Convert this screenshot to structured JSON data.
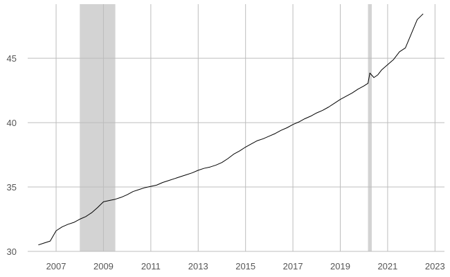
{
  "chart_data": {
    "type": "line",
    "title": "",
    "xlabel": "",
    "ylabel": "",
    "xlim": [
      2005.8,
      2023.4
    ],
    "ylim": [
      30,
      49.2
    ],
    "x_ticks": [
      2007,
      2009,
      2011,
      2013,
      2015,
      2017,
      2019,
      2021,
      2023
    ],
    "x_tick_labels": [
      "2007",
      "2009",
      "2011",
      "2013",
      "2015",
      "2017",
      "2019",
      "2021",
      "2023"
    ],
    "y_ticks": [
      30,
      35,
      40,
      45
    ],
    "y_tick_labels": [
      "30",
      "35",
      "40",
      "45"
    ],
    "grid": true,
    "legend": "none",
    "shaded_periods": [
      {
        "start": 2008.0,
        "end": 2009.5
      },
      {
        "start": 2020.17,
        "end": 2020.33
      }
    ],
    "series": [
      {
        "color": "#000000",
        "points": [
          [
            2006.25,
            30.5
          ],
          [
            2006.5,
            30.65
          ],
          [
            2006.75,
            30.8
          ],
          [
            2007.0,
            31.6
          ],
          [
            2007.25,
            31.9
          ],
          [
            2007.5,
            32.1
          ],
          [
            2007.75,
            32.25
          ],
          [
            2008.0,
            32.5
          ],
          [
            2008.25,
            32.7
          ],
          [
            2008.5,
            33.0
          ],
          [
            2008.75,
            33.4
          ],
          [
            2009.0,
            33.85
          ],
          [
            2009.25,
            33.95
          ],
          [
            2009.5,
            34.05
          ],
          [
            2009.75,
            34.2
          ],
          [
            2010.0,
            34.4
          ],
          [
            2010.25,
            34.65
          ],
          [
            2010.5,
            34.8
          ],
          [
            2010.75,
            34.95
          ],
          [
            2011.0,
            35.05
          ],
          [
            2011.25,
            35.15
          ],
          [
            2011.5,
            35.35
          ],
          [
            2011.75,
            35.5
          ],
          [
            2012.0,
            35.65
          ],
          [
            2012.25,
            35.8
          ],
          [
            2012.5,
            35.95
          ],
          [
            2012.75,
            36.1
          ],
          [
            2013.0,
            36.3
          ],
          [
            2013.25,
            36.45
          ],
          [
            2013.5,
            36.55
          ],
          [
            2013.75,
            36.7
          ],
          [
            2014.0,
            36.9
          ],
          [
            2014.25,
            37.2
          ],
          [
            2014.5,
            37.55
          ],
          [
            2014.75,
            37.8
          ],
          [
            2015.0,
            38.1
          ],
          [
            2015.25,
            38.35
          ],
          [
            2015.5,
            38.6
          ],
          [
            2015.75,
            38.75
          ],
          [
            2016.0,
            38.95
          ],
          [
            2016.25,
            39.15
          ],
          [
            2016.5,
            39.4
          ],
          [
            2016.75,
            39.6
          ],
          [
            2017.0,
            39.85
          ],
          [
            2017.25,
            40.05
          ],
          [
            2017.5,
            40.3
          ],
          [
            2017.75,
            40.5
          ],
          [
            2018.0,
            40.75
          ],
          [
            2018.25,
            40.95
          ],
          [
            2018.5,
            41.2
          ],
          [
            2018.75,
            41.5
          ],
          [
            2019.0,
            41.8
          ],
          [
            2019.25,
            42.05
          ],
          [
            2019.5,
            42.3
          ],
          [
            2019.75,
            42.6
          ],
          [
            2020.0,
            42.85
          ],
          [
            2020.17,
            43.05
          ],
          [
            2020.25,
            43.85
          ],
          [
            2020.42,
            43.5
          ],
          [
            2020.58,
            43.7
          ],
          [
            2020.75,
            44.1
          ],
          [
            2021.0,
            44.5
          ],
          [
            2021.25,
            44.9
          ],
          [
            2021.5,
            45.5
          ],
          [
            2021.75,
            45.8
          ],
          [
            2022.0,
            46.9
          ],
          [
            2022.25,
            48.0
          ],
          [
            2022.5,
            48.45
          ]
        ]
      }
    ]
  }
}
